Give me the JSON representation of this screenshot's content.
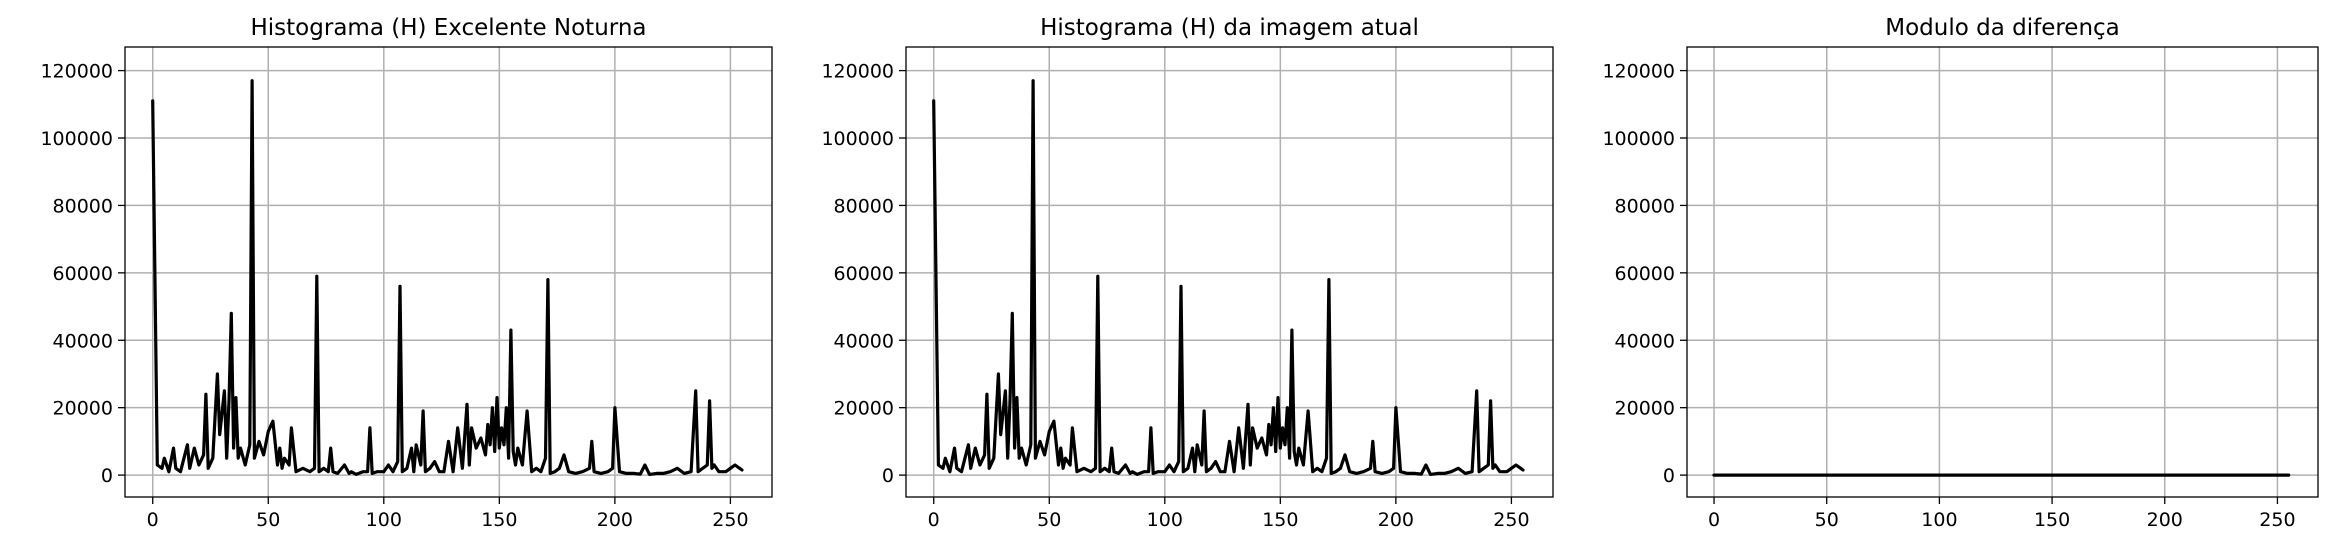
{
  "chart_data": [
    {
      "type": "line",
      "title": "Histograma (H) Excelente Noturna",
      "xlim": [
        -12,
        268
      ],
      "ylim": [
        -6500,
        127000
      ],
      "xticks": [
        0,
        50,
        100,
        150,
        200,
        250
      ],
      "yticks": [
        0,
        20000,
        40000,
        60000,
        80000,
        100000,
        120000
      ],
      "grid": true,
      "line_color": "#000000",
      "x": [
        0,
        2,
        4,
        5,
        7,
        9,
        10,
        12,
        15,
        16,
        18,
        20,
        22,
        23,
        24,
        26,
        28,
        29,
        31,
        32,
        33,
        34,
        35,
        36,
        37,
        38,
        40,
        42,
        43,
        44,
        46,
        48,
        50,
        52,
        54,
        55,
        56,
        57,
        59,
        60,
        62,
        65,
        68,
        70,
        71,
        72,
        74,
        76,
        77,
        78,
        80,
        83,
        85,
        86,
        88,
        91,
        93,
        94,
        95,
        97,
        100,
        102,
        104,
        106,
        107,
        108,
        110,
        112,
        113,
        114,
        116,
        117,
        118,
        120,
        122,
        124,
        126,
        128,
        130,
        132,
        134,
        136,
        137,
        138,
        140,
        142,
        144,
        145,
        146,
        147,
        148,
        149,
        150,
        151,
        152,
        153,
        154,
        155,
        156,
        157,
        158,
        160,
        162,
        164,
        166,
        168,
        170,
        171,
        172,
        174,
        176,
        178,
        180,
        183,
        186,
        189,
        190,
        191,
        194,
        197,
        199,
        200,
        202,
        205,
        208,
        211,
        213,
        215,
        218,
        221,
        224,
        227,
        230,
        233,
        235,
        236,
        238,
        240,
        241,
        242,
        243,
        245,
        248,
        250,
        252,
        254,
        255
      ],
      "y": [
        111000,
        3000,
        2000,
        5000,
        1000,
        8000,
        2000,
        1000,
        9000,
        2000,
        8000,
        3000,
        6000,
        24000,
        2000,
        5000,
        30000,
        12000,
        25000,
        5000,
        22000,
        48000,
        8000,
        23000,
        5000,
        8000,
        3000,
        9000,
        117000,
        5000,
        10000,
        6000,
        13000,
        16000,
        3000,
        8000,
        2000,
        5000,
        3000,
        14000,
        1000,
        2000,
        1000,
        2000,
        59000,
        1000,
        2000,
        1000,
        8000,
        1000,
        500,
        3000,
        500,
        1000,
        200,
        1000,
        1000,
        14000,
        500,
        1000,
        1000,
        3000,
        1000,
        4000,
        56000,
        1000,
        2000,
        8000,
        1000,
        9000,
        3000,
        19000,
        1000,
        2000,
        4000,
        1000,
        1000,
        10000,
        1000,
        14000,
        2000,
        21000,
        3000,
        14000,
        8000,
        11000,
        6000,
        15000,
        9000,
        20000,
        7000,
        23000,
        8000,
        14000,
        9000,
        20000,
        5000,
        43000,
        7000,
        3000,
        8000,
        3000,
        19000,
        1000,
        2000,
        1000,
        5000,
        58000,
        500,
        1000,
        2000,
        6000,
        1000,
        500,
        1000,
        2000,
        10000,
        1000,
        500,
        1000,
        2000,
        20000,
        1000,
        500,
        500,
        300,
        3000,
        200,
        500,
        500,
        1000,
        2000,
        500,
        1000,
        25000,
        1000,
        2000,
        3000,
        22000,
        2000,
        3000,
        1000,
        1000,
        2000,
        3000,
        2000,
        1500
      ]
    },
    {
      "type": "line",
      "title": "Histograma (H) da imagem atual",
      "xlim": [
        -12,
        268
      ],
      "ylim": [
        -6500,
        127000
      ],
      "xticks": [
        0,
        50,
        100,
        150,
        200,
        250
      ],
      "yticks": [
        0,
        20000,
        40000,
        60000,
        80000,
        100000,
        120000
      ],
      "grid": true,
      "line_color": "#000000",
      "x": [
        0,
        2,
        4,
        5,
        7,
        9,
        10,
        12,
        15,
        16,
        18,
        20,
        22,
        23,
        24,
        26,
        28,
        29,
        31,
        32,
        33,
        34,
        35,
        36,
        37,
        38,
        40,
        42,
        43,
        44,
        46,
        48,
        50,
        52,
        54,
        55,
        56,
        57,
        59,
        60,
        62,
        65,
        68,
        70,
        71,
        72,
        74,
        76,
        77,
        78,
        80,
        83,
        85,
        86,
        88,
        91,
        93,
        94,
        95,
        97,
        100,
        102,
        104,
        106,
        107,
        108,
        110,
        112,
        113,
        114,
        116,
        117,
        118,
        120,
        122,
        124,
        126,
        128,
        130,
        132,
        134,
        136,
        137,
        138,
        140,
        142,
        144,
        145,
        146,
        147,
        148,
        149,
        150,
        151,
        152,
        153,
        154,
        155,
        156,
        157,
        158,
        160,
        162,
        164,
        166,
        168,
        170,
        171,
        172,
        174,
        176,
        178,
        180,
        183,
        186,
        189,
        190,
        191,
        194,
        197,
        199,
        200,
        202,
        205,
        208,
        211,
        213,
        215,
        218,
        221,
        224,
        227,
        230,
        233,
        235,
        236,
        238,
        240,
        241,
        242,
        243,
        245,
        248,
        250,
        252,
        254,
        255
      ],
      "y": [
        111000,
        3000,
        2000,
        5000,
        1000,
        8000,
        2000,
        1000,
        9000,
        2000,
        8000,
        3000,
        6000,
        24000,
        2000,
        5000,
        30000,
        12000,
        25000,
        5000,
        22000,
        48000,
        8000,
        23000,
        5000,
        8000,
        3000,
        9000,
        117000,
        5000,
        10000,
        6000,
        13000,
        16000,
        3000,
        8000,
        2000,
        5000,
        3000,
        14000,
        1000,
        2000,
        1000,
        2000,
        59000,
        1000,
        2000,
        1000,
        8000,
        1000,
        500,
        3000,
        500,
        1000,
        200,
        1000,
        1000,
        14000,
        500,
        1000,
        1000,
        3000,
        1000,
        4000,
        56000,
        1000,
        2000,
        8000,
        1000,
        9000,
        3000,
        19000,
        1000,
        2000,
        4000,
        1000,
        1000,
        10000,
        1000,
        14000,
        2000,
        21000,
        3000,
        14000,
        8000,
        11000,
        6000,
        15000,
        9000,
        20000,
        7000,
        23000,
        8000,
        14000,
        9000,
        20000,
        5000,
        43000,
        7000,
        3000,
        8000,
        3000,
        19000,
        1000,
        2000,
        1000,
        5000,
        58000,
        500,
        1000,
        2000,
        6000,
        1000,
        500,
        1000,
        2000,
        10000,
        1000,
        500,
        1000,
        2000,
        20000,
        1000,
        500,
        500,
        300,
        3000,
        200,
        500,
        500,
        1000,
        2000,
        500,
        1000,
        25000,
        1000,
        2000,
        3000,
        22000,
        2000,
        3000,
        1000,
        1000,
        2000,
        3000,
        2000,
        1500
      ]
    },
    {
      "type": "line",
      "title": "Modulo da diferença",
      "xlim": [
        -12,
        268
      ],
      "ylim": [
        -6500,
        127000
      ],
      "xticks": [
        0,
        50,
        100,
        150,
        200,
        250
      ],
      "yticks": [
        0,
        20000,
        40000,
        60000,
        80000,
        100000,
        120000
      ],
      "grid": true,
      "line_color": "#000000",
      "x": [
        0,
        255
      ],
      "y": [
        0,
        0
      ]
    }
  ]
}
